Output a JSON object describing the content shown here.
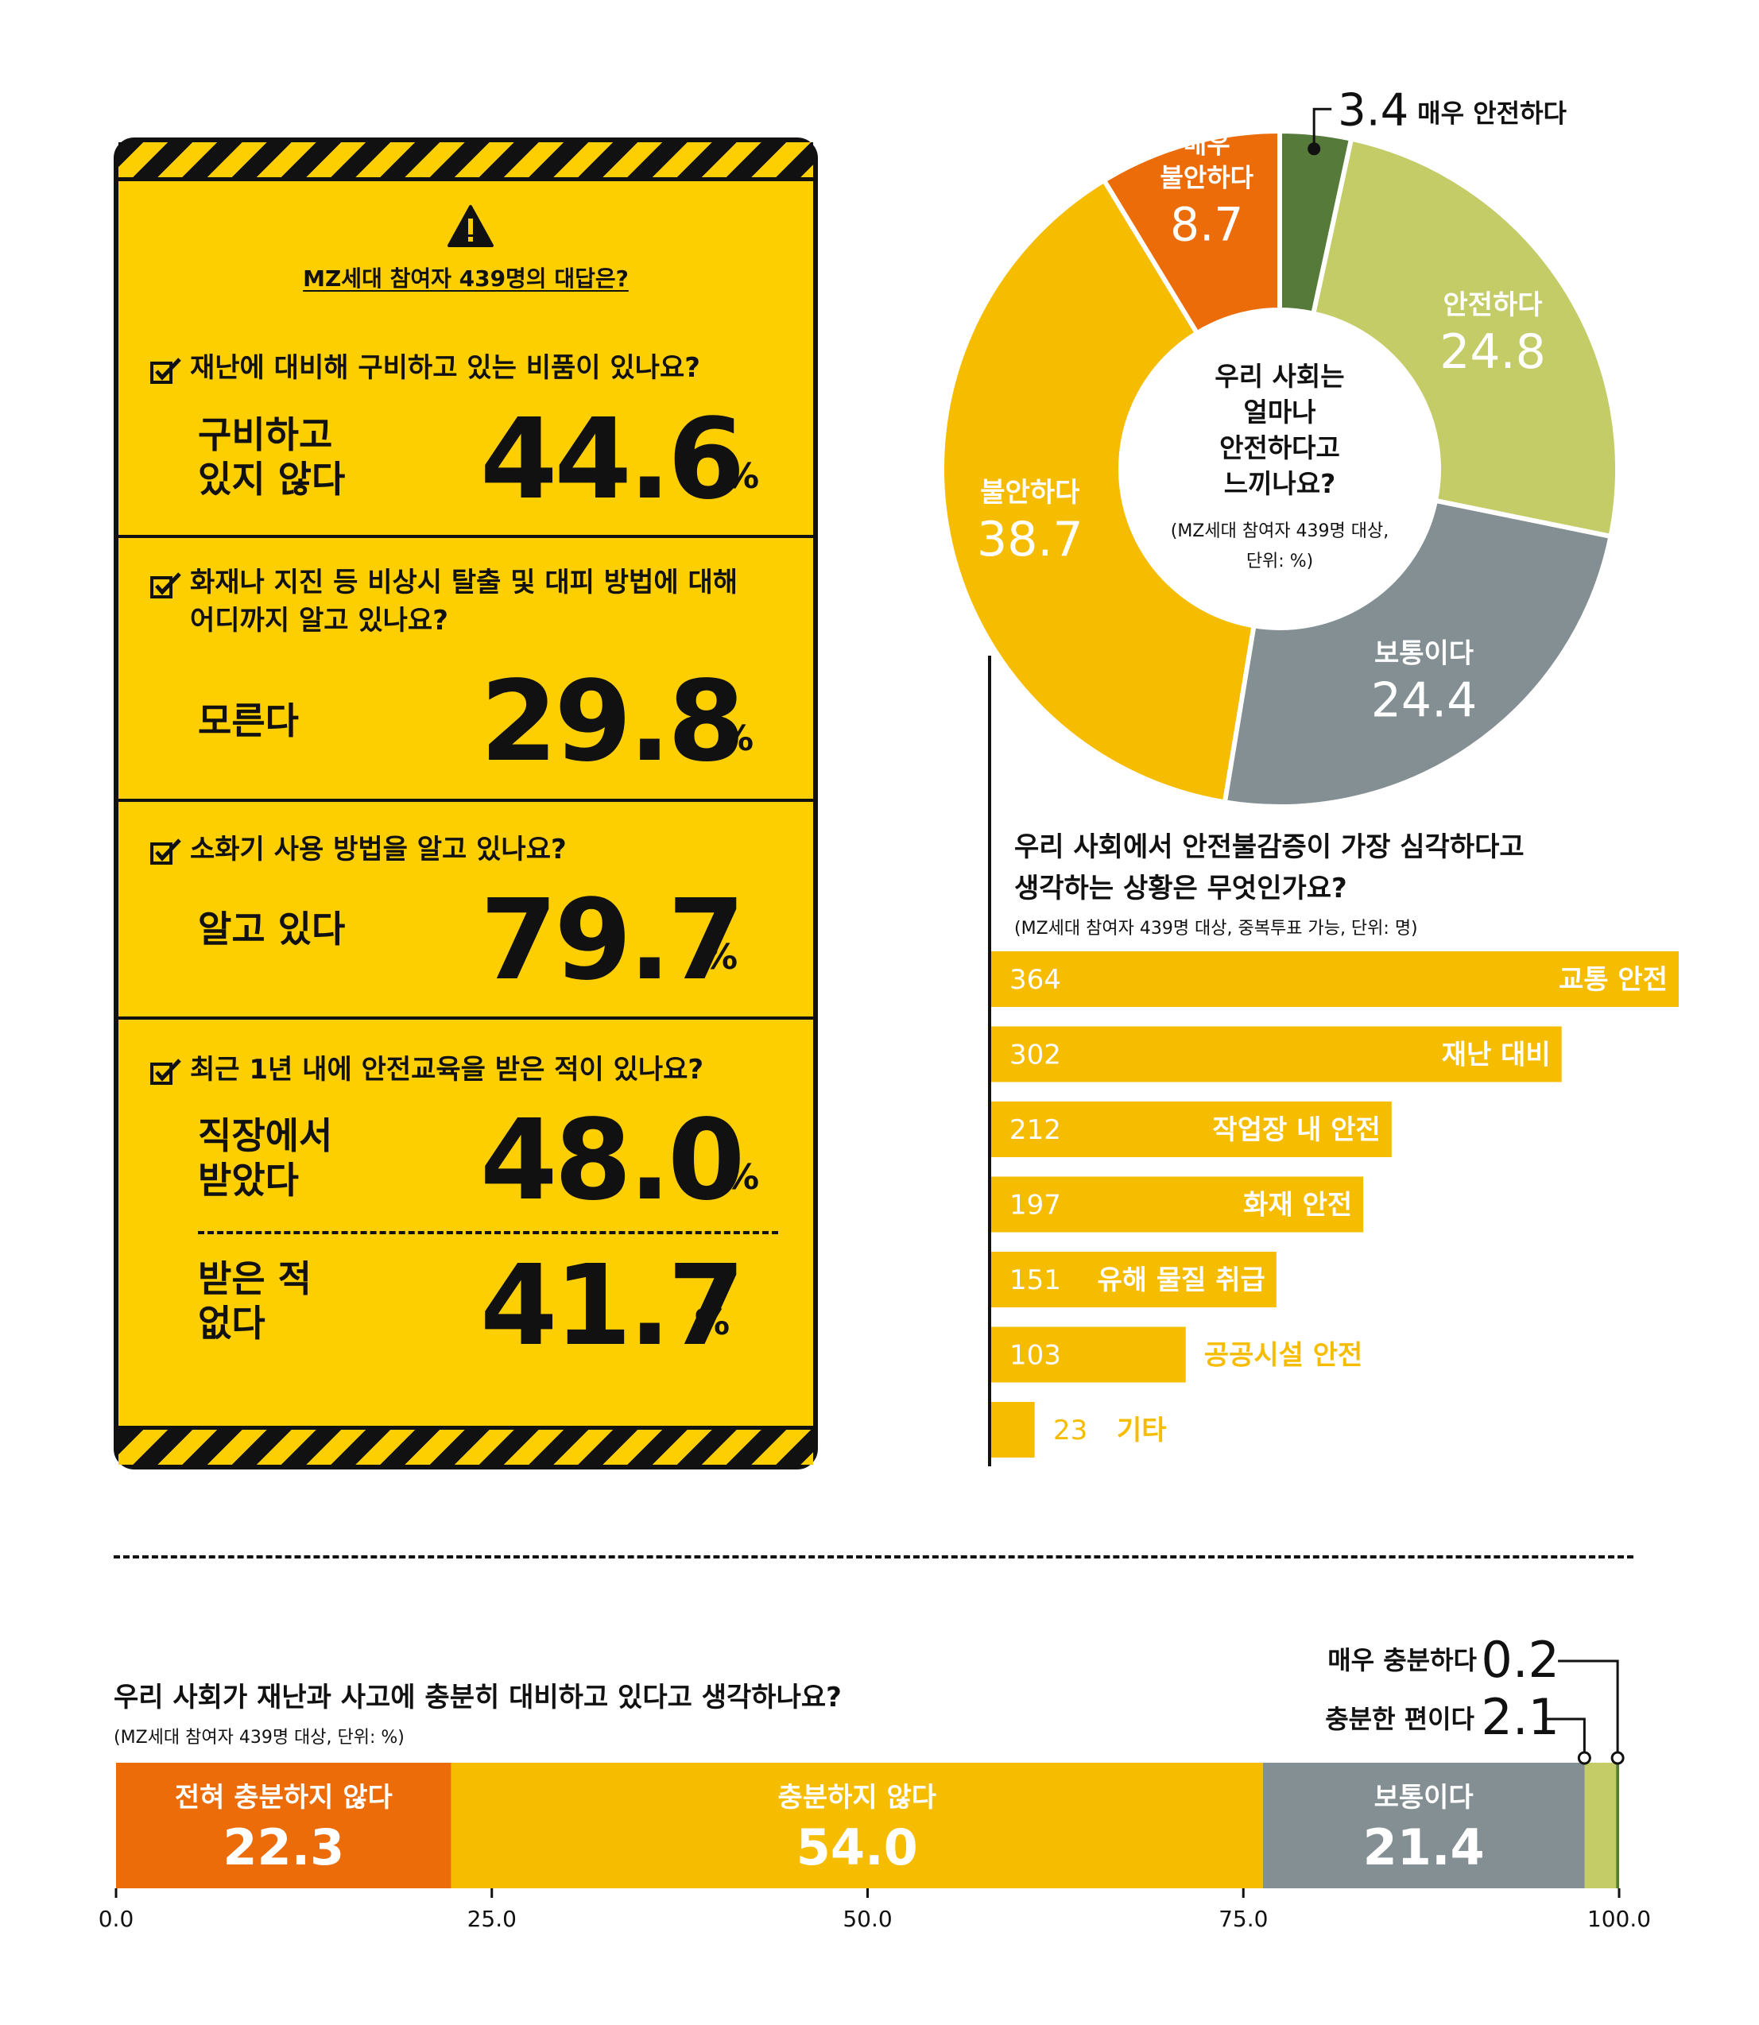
{
  "panel": {
    "title": "MZ세대 참여자 439명의 대답은?",
    "questions": [
      {
        "question": "재난에 대비해 구비하고 있는 비품이 있나요?",
        "answer": "구비하고\n있지 않다",
        "value": "44.6",
        "unit": "%"
      },
      {
        "question": "화재나 지진 등 비상시 탈출 및 대피 방법에 대해\n어디까지 알고 있나요?",
        "answer": "모른다",
        "value": "29.8",
        "unit": "%"
      },
      {
        "question": "소화기 사용 방법을 알고 있나요?",
        "answer": "알고 있다",
        "value": "79.7",
        "unit": "%"
      },
      {
        "question": "최근 1년 내에 안전교육을 받은 적이 있나요?",
        "answer": "직장에서\n받았다",
        "value": "48.0",
        "unit": "%",
        "answer2": "받은 적\n없다",
        "value2": "41.7"
      }
    ],
    "icons": [
      "warning-triangle-icon",
      "checkbox-check-icon"
    ],
    "colors": {
      "background": "#FDCF00",
      "stripe": "#111111"
    }
  },
  "chart_data": [
    {
      "type": "pie",
      "title": "우리 사회는\n얼마나\n안전하다고\n느끼나요?",
      "note": "(MZ세대 참여자 439명 대상,\n단위: %)",
      "slices": [
        {
          "label": "매우 안전하다",
          "value": 3.4,
          "color": "#557A3A"
        },
        {
          "label": "안전하다",
          "value": 24.8,
          "color": "#C3CC66"
        },
        {
          "label": "보통이다",
          "value": 24.4,
          "color": "#848F93"
        },
        {
          "label": "불안하다",
          "value": 38.7,
          "color": "#F5BC00"
        },
        {
          "label": "매우 불안하다",
          "value": 8.7,
          "color": "#EC6C0A"
        }
      ]
    },
    {
      "type": "bar",
      "orientation": "horizontal",
      "title": "우리 사회에서 안전불감증이 가장 심각하다고\n생각하는 상황은 무엇인가요?",
      "note": "(MZ세대 참여자 439명 대상, 중복투표 가능, 단위: 명)",
      "categories": [
        "교통 안전",
        "재난 대비",
        "작업장 내 안전",
        "화재 안전",
        "유해 물질 취급",
        "공공시설 안전",
        "기타"
      ],
      "values": [
        364,
        302,
        212,
        197,
        151,
        103,
        23
      ],
      "color": "#F5BC00"
    },
    {
      "type": "bar",
      "orientation": "horizontal",
      "stacked": true,
      "title": "우리 사회가 재난과 사고에 충분히 대비하고 있다고 생각하나요?",
      "note": "(MZ세대 참여자 439명 대상, 단위: %)",
      "segments": [
        {
          "label": "전혀 충분하지 않다",
          "value": 22.3,
          "color": "#EC6C0A"
        },
        {
          "label": "충분하지 않다",
          "value": 54.0,
          "color": "#F5BC00"
        },
        {
          "label": "보통이다",
          "value": 21.4,
          "color": "#848F93"
        },
        {
          "label": "충분한 편이다",
          "value": 2.1,
          "color": "#C3CC66"
        },
        {
          "label": "매우 충분하다",
          "value": 0.2,
          "color": "#557A3A"
        }
      ],
      "xticks": [
        "0.0",
        "25.0",
        "50.0",
        "75.0",
        "100.0"
      ],
      "xlim": [
        0,
        100
      ]
    }
  ]
}
